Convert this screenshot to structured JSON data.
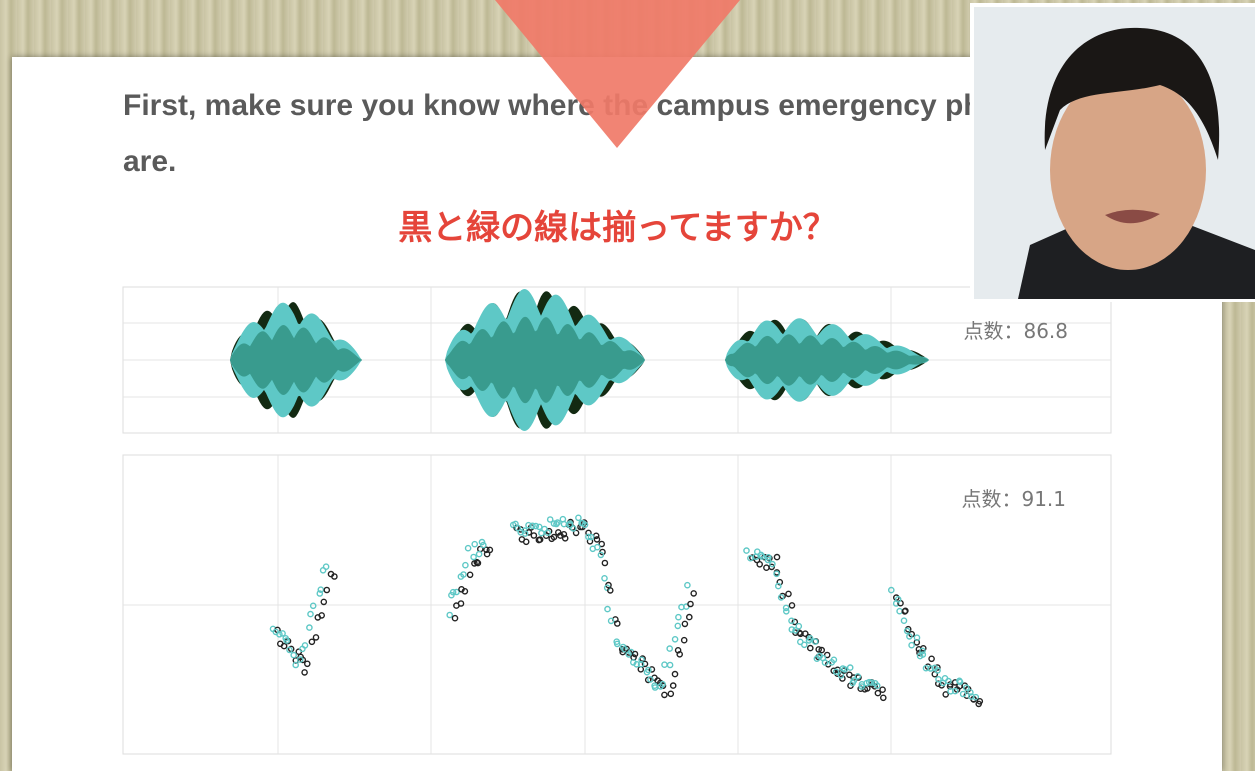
{
  "heading": "First, make sure you know where the campus emergency phones are.",
  "prompt": "黒と緑の線は揃ってますか？",
  "panels": [
    {
      "score": "点数：86.8"
    },
    {
      "score": "点数：91.1"
    }
  ]
}
